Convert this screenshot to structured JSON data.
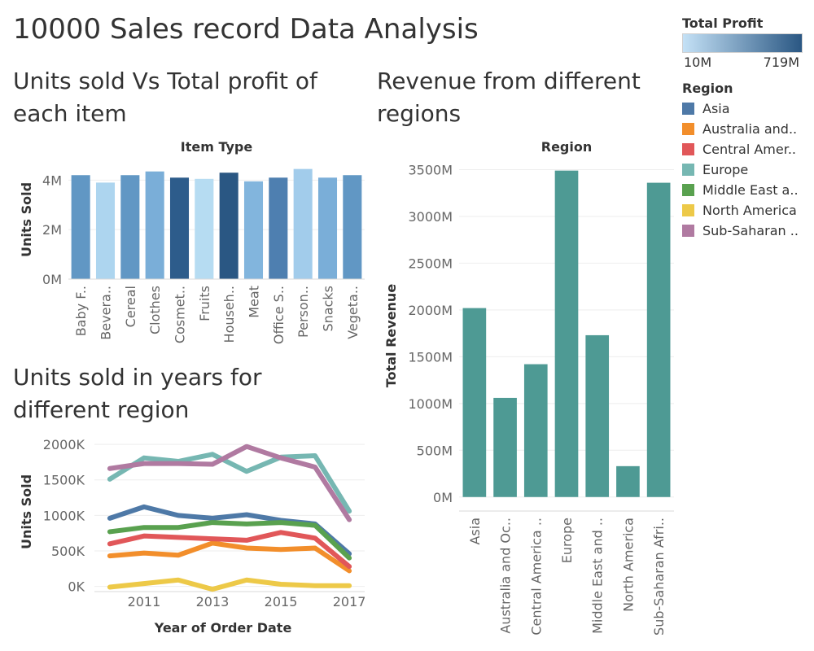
{
  "dashboard": {
    "title": "10000 Sales record Data Analysis",
    "sheet1_title": "Units sold Vs Total profit of each item",
    "sheet2_title": "Units sold in years for different region",
    "sheet3_title": "Revenue from different regions"
  },
  "legend": {
    "profit_title": "Total Profit",
    "profit_min": "10M",
    "profit_max": "719M",
    "profit_gradient_start": "#c4e1f6",
    "profit_gradient_end": "#2a5783",
    "region_title": "Region",
    "regions": [
      {
        "label": "Asia",
        "color": "#4e79a7"
      },
      {
        "label": "Australia and..",
        "color": "#f28e2b"
      },
      {
        "label": "Central Amer..",
        "color": "#e15759"
      },
      {
        "label": "Europe",
        "color": "#76b7b2"
      },
      {
        "label": "Middle East a..",
        "color": "#59a14f"
      },
      {
        "label": "North America",
        "color": "#edc948"
      },
      {
        "label": "Sub-Saharan ..",
        "color": "#b07aa1"
      }
    ]
  },
  "chart_data": [
    {
      "type": "bar",
      "header": "Item Type",
      "ylabel": "Units Sold",
      "ylim": [
        0,
        4800000
      ],
      "yticks": [
        0,
        2000000,
        4000000
      ],
      "ytick_labels": [
        "0M",
        "2M",
        "4M"
      ],
      "categories": [
        "Baby F..",
        "Bevera..",
        "Cereal",
        "Clothes",
        "Cosmet..",
        "Fruits",
        "Househ..",
        "Meat",
        "Office S..",
        "Person..",
        "Snacks",
        "Vegeta.."
      ],
      "values": [
        4200000,
        3900000,
        4200000,
        4350000,
        4100000,
        4050000,
        4300000,
        3950000,
        4100000,
        4450000,
        4100000,
        4200000
      ],
      "colors": [
        "#6197c4",
        "#add5ef",
        "#6197c4",
        "#7aaed8",
        "#2d5c8b",
        "#b6dcf2",
        "#2a5783",
        "#82b5dd",
        "#4e7fb0",
        "#a2cceb",
        "#7aaed8",
        "#6197c4"
      ]
    },
    {
      "type": "line",
      "xlabel": "Year of Order Date",
      "ylabel": "Units Sold",
      "x": [
        2010,
        2011,
        2012,
        2013,
        2014,
        2015,
        2016,
        2017
      ],
      "xticks": [
        2011,
        2013,
        2015,
        2017
      ],
      "ylim": [
        -50000,
        2150000
      ],
      "yticks": [
        0,
        500000,
        1000000,
        1500000,
        2000000
      ],
      "ytick_labels": [
        "0K",
        "500K",
        "1000K",
        "1500K",
        "2000K"
      ],
      "series": [
        {
          "name": "Asia",
          "color": "#4e79a7",
          "values": [
            960000,
            1120000,
            1000000,
            960000,
            1010000,
            930000,
            880000,
            460000
          ]
        },
        {
          "name": "Australia and Oceania",
          "color": "#f28e2b",
          "values": [
            430000,
            470000,
            440000,
            610000,
            540000,
            520000,
            540000,
            220000
          ]
        },
        {
          "name": "Central America and the Caribbean",
          "color": "#e15759",
          "values": [
            600000,
            710000,
            690000,
            670000,
            650000,
            760000,
            680000,
            280000
          ]
        },
        {
          "name": "Europe",
          "color": "#76b7b2",
          "values": [
            1510000,
            1810000,
            1760000,
            1860000,
            1620000,
            1820000,
            1840000,
            1060000
          ]
        },
        {
          "name": "Middle East and North Africa",
          "color": "#59a14f",
          "values": [
            770000,
            830000,
            830000,
            900000,
            880000,
            900000,
            860000,
            400000
          ]
        },
        {
          "name": "North America",
          "color": "#edc948",
          "values": [
            -10000,
            40000,
            90000,
            -40000,
            90000,
            30000,
            10000,
            10000
          ]
        },
        {
          "name": "Sub-Saharan Africa",
          "color": "#b07aa1",
          "values": [
            1660000,
            1730000,
            1730000,
            1720000,
            1970000,
            1810000,
            1680000,
            940000
          ]
        }
      ]
    },
    {
      "type": "bar",
      "header": "Region",
      "ylabel": "Total Revenue",
      "ylim": [
        -150000000,
        3600000000
      ],
      "yticks": [
        0,
        500000000,
        1000000000,
        1500000000,
        2000000000,
        2500000000,
        3000000000,
        3500000000
      ],
      "ytick_labels": [
        "0M",
        "500M",
        "1000M",
        "1500M",
        "2000M",
        "2500M",
        "3000M",
        "3500M"
      ],
      "categories": [
        "Asia",
        "Australia and Oc..",
        "Central America ..",
        "Europe",
        "Middle East and ..",
        "North America",
        "Sub-Saharan Afri.."
      ],
      "values": [
        2020000000,
        1060000000,
        1420000000,
        3490000000,
        1730000000,
        330000000,
        3360000000
      ],
      "color": "#4e9a94"
    }
  ]
}
